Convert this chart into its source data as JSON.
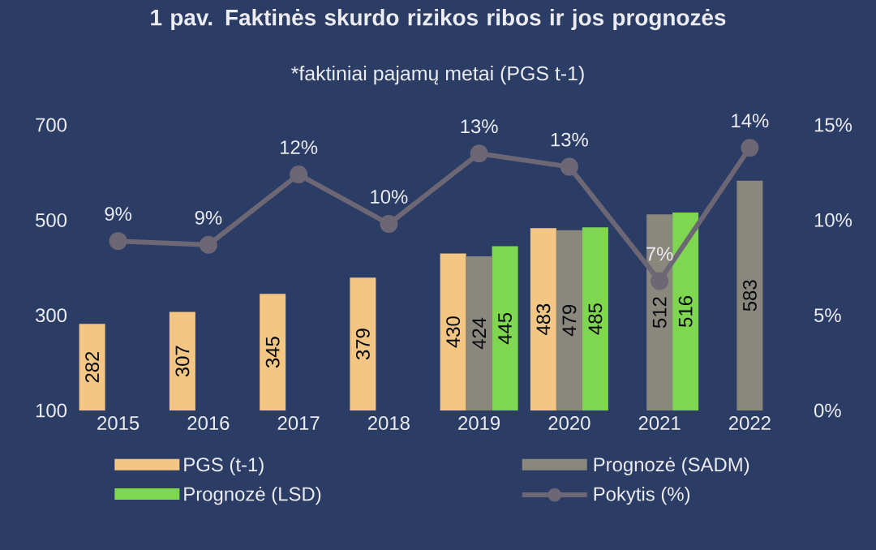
{
  "chart_data": {
    "type": "bar",
    "title": "1 pav. Faktinės skurdo rizikos ribos ir jos prognozės",
    "subtitle": "*faktiniai pajamų metai (PGS t-1)",
    "categories": [
      "2015",
      "2016",
      "2017",
      "2018",
      "2019",
      "2020",
      "2021",
      "2022"
    ],
    "series": [
      {
        "name": "PGS (t-1)",
        "color": "#f3c684",
        "values": [
          282,
          307,
          345,
          379,
          430,
          483,
          null,
          null
        ]
      },
      {
        "name": "Prognozė (SADM)",
        "color": "#8a877c",
        "values": [
          null,
          null,
          null,
          null,
          424,
          479,
          512,
          583
        ]
      },
      {
        "name": "Prognozė (LSD)",
        "color": "#7fd650",
        "values": [
          null,
          null,
          null,
          null,
          445,
          485,
          516,
          null
        ]
      },
      {
        "name": "Pokytis (%)",
        "type": "line",
        "axis": "y2",
        "color": "#6d6675",
        "marker": "circle",
        "values": [
          8.9,
          8.7,
          12.4,
          9.8,
          13.5,
          12.8,
          6.8,
          13.8
        ],
        "value_labels": [
          "9%",
          "9%",
          "12%",
          "10%",
          "13%",
          "13%",
          "7%",
          "14%"
        ]
      }
    ],
    "ylim": [
      100,
      700
    ],
    "yticks": [
      100,
      300,
      500,
      700
    ],
    "y2lim": [
      0,
      15
    ],
    "y2ticks": [
      {
        "value": 0,
        "label": "0%"
      },
      {
        "value": 5,
        "label": "5%"
      },
      {
        "value": 10,
        "label": "10%"
      },
      {
        "value": 15,
        "label": "15%"
      }
    ],
    "data_labels": true,
    "grid": false,
    "legend": "bottom"
  }
}
